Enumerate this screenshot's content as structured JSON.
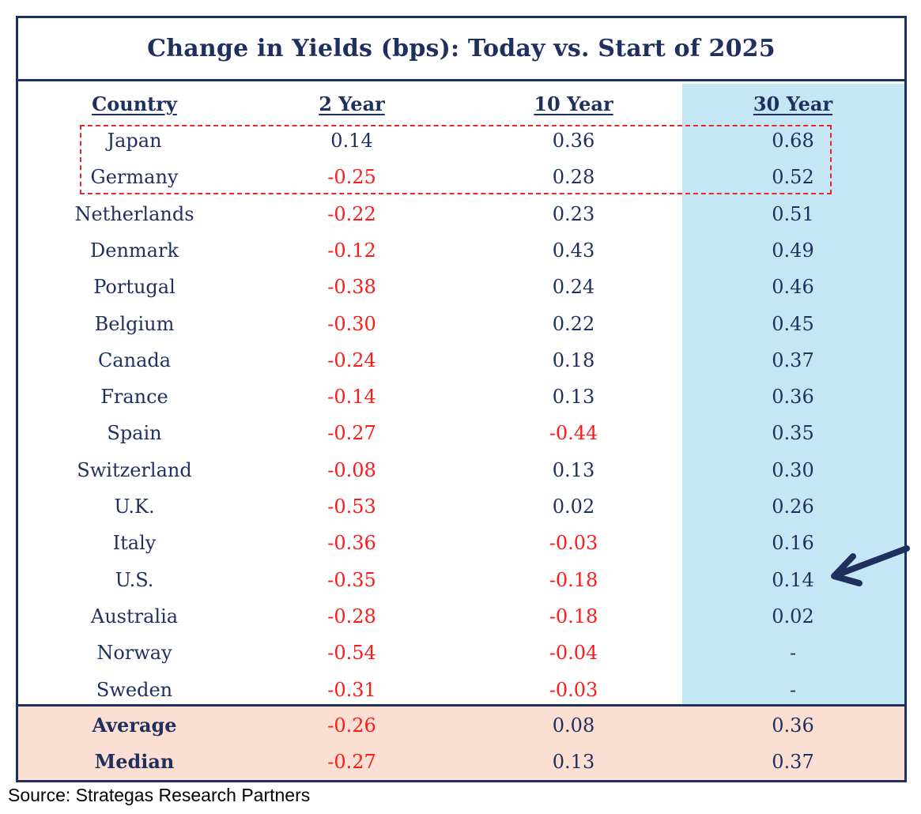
{
  "table": {
    "title": "Change in Yields (bps): Today vs. Start of 2025",
    "headers": [
      "Country",
      "2 Year",
      "10 Year",
      "30 Year"
    ],
    "rows": [
      {
        "country": "Japan",
        "y2": "0.14",
        "y10": "0.36",
        "y30": "0.68"
      },
      {
        "country": "Germany",
        "y2": "-0.25",
        "y10": "0.28",
        "y30": "0.52"
      },
      {
        "country": "Netherlands",
        "y2": "-0.22",
        "y10": "0.23",
        "y30": "0.51"
      },
      {
        "country": "Denmark",
        "y2": "-0.12",
        "y10": "0.43",
        "y30": "0.49"
      },
      {
        "country": "Portugal",
        "y2": "-0.38",
        "y10": "0.24",
        "y30": "0.46"
      },
      {
        "country": "Belgium",
        "y2": "-0.30",
        "y10": "0.22",
        "y30": "0.45"
      },
      {
        "country": "Canada",
        "y2": "-0.24",
        "y10": "0.18",
        "y30": "0.37"
      },
      {
        "country": "France",
        "y2": "-0.14",
        "y10": "0.13",
        "y30": "0.36"
      },
      {
        "country": "Spain",
        "y2": "-0.27",
        "y10": "-0.44",
        "y30": "0.35"
      },
      {
        "country": "Switzerland",
        "y2": "-0.08",
        "y10": "0.13",
        "y30": "0.30"
      },
      {
        "country": "U.K.",
        "y2": "-0.53",
        "y10": "0.02",
        "y30": "0.26"
      },
      {
        "country": "Italy",
        "y2": "-0.36",
        "y10": "-0.03",
        "y30": "0.16"
      },
      {
        "country": "U.S.",
        "y2": "-0.35",
        "y10": "-0.18",
        "y30": "0.14"
      },
      {
        "country": "Australia",
        "y2": "-0.28",
        "y10": "-0.18",
        "y30": "0.02"
      },
      {
        "country": "Norway",
        "y2": "-0.54",
        "y10": "-0.04",
        "y30": "-"
      },
      {
        "country": "Sweden",
        "y2": "-0.31",
        "y10": "-0.03",
        "y30": "-"
      }
    ],
    "summary": [
      {
        "label": "Average",
        "y2": "-0.26",
        "y10": "0.08",
        "y30": "0.36"
      },
      {
        "label": "Median",
        "y2": "-0.27",
        "y10": "0.13",
        "y30": "0.37"
      }
    ]
  },
  "annotations": {
    "highlighted_rows": [
      "Japan",
      "Germany"
    ],
    "arrow_target": "U.S."
  },
  "colors": {
    "navy": "#1f2f5e",
    "negative": "#ff1a1a",
    "highlight_column": "#c5e6f4",
    "summary_band": "#fbdfd2",
    "callout_border": "#e8262b"
  },
  "source": "Source: Strategas Research Partners"
}
